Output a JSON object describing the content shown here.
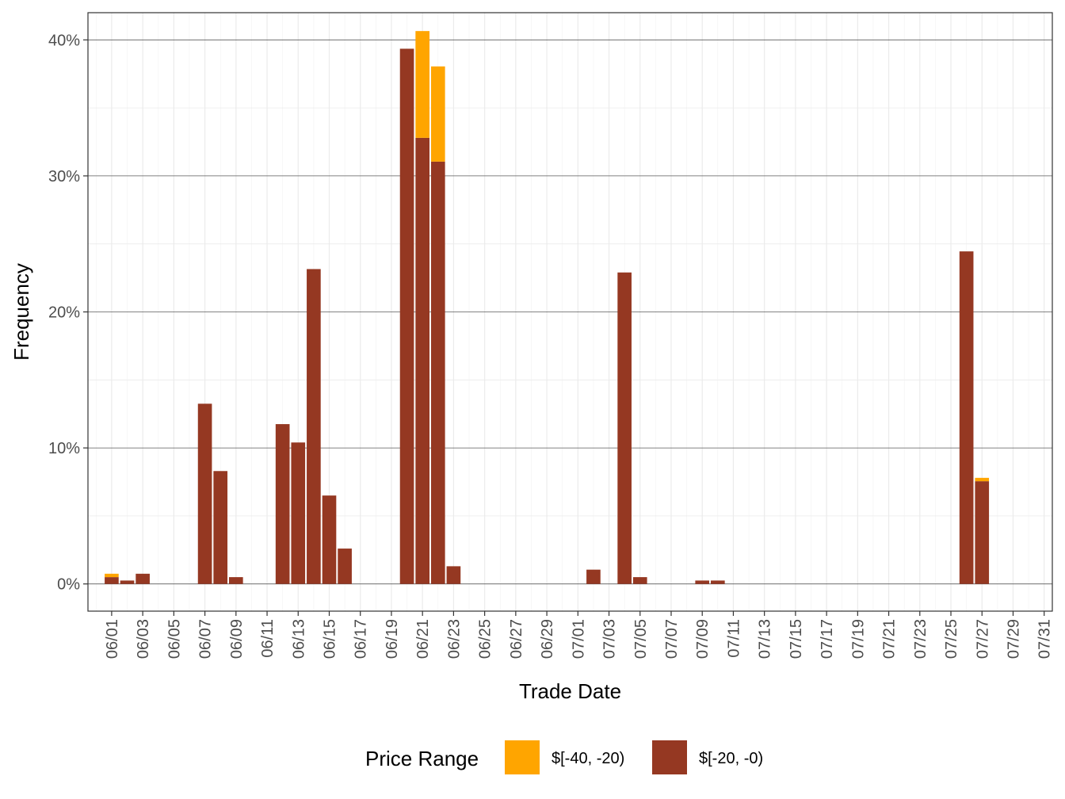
{
  "chart_data": {
    "type": "bar",
    "stacked": true,
    "xlabel": "Trade Date",
    "ylabel": "Frequency",
    "ylim": [
      -2,
      42
    ],
    "yticks": [
      0,
      10,
      20,
      30,
      40
    ],
    "ytick_labels": [
      "0%",
      "10%",
      "20%",
      "30%",
      "40%"
    ],
    "x_range": [
      "2024-05-31",
      "2024-07-31"
    ],
    "xtick_dates": [
      "06/01",
      "06/03",
      "06/05",
      "06/07",
      "06/09",
      "06/11",
      "06/13",
      "06/15",
      "06/17",
      "06/19",
      "06/21",
      "06/23",
      "06/25",
      "06/27",
      "06/29",
      "07/01",
      "07/03",
      "07/05",
      "07/07",
      "07/09",
      "07/11",
      "07/13",
      "07/15",
      "07/17",
      "07/19",
      "07/21",
      "07/23",
      "07/25",
      "07/27",
      "07/29",
      "07/31"
    ],
    "grid": true,
    "legend": {
      "title": "Price Range",
      "position": "bottom"
    },
    "series": [
      {
        "name": "$[-20, -0)",
        "color": "#953822",
        "points": [
          {
            "x": "06/01",
            "y": 0.5
          },
          {
            "x": "06/02",
            "y": 0.25
          },
          {
            "x": "06/03",
            "y": 0.75
          },
          {
            "x": "06/07",
            "y": 13.25
          },
          {
            "x": "06/08",
            "y": 8.3
          },
          {
            "x": "06/09",
            "y": 0.5
          },
          {
            "x": "06/12",
            "y": 11.75
          },
          {
            "x": "06/13",
            "y": 10.4
          },
          {
            "x": "06/14",
            "y": 23.15
          },
          {
            "x": "06/15",
            "y": 6.5
          },
          {
            "x": "06/16",
            "y": 2.6
          },
          {
            "x": "06/20",
            "y": 39.35
          },
          {
            "x": "06/21",
            "y": 32.8
          },
          {
            "x": "06/22",
            "y": 31.05
          },
          {
            "x": "06/23",
            "y": 1.3
          },
          {
            "x": "07/02",
            "y": 1.05
          },
          {
            "x": "07/04",
            "y": 22.9
          },
          {
            "x": "07/05",
            "y": 0.5
          },
          {
            "x": "07/09",
            "y": 0.25
          },
          {
            "x": "07/10",
            "y": 0.25
          },
          {
            "x": "07/26",
            "y": 24.45
          },
          {
            "x": "07/27",
            "y": 7.55
          }
        ]
      },
      {
        "name": "$[-40, -20)",
        "color": "#FFA500",
        "points": [
          {
            "x": "06/01",
            "y": 0.25
          },
          {
            "x": "06/21",
            "y": 7.85
          },
          {
            "x": "06/22",
            "y": 7.0
          },
          {
            "x": "07/27",
            "y": 0.25
          }
        ]
      }
    ]
  }
}
